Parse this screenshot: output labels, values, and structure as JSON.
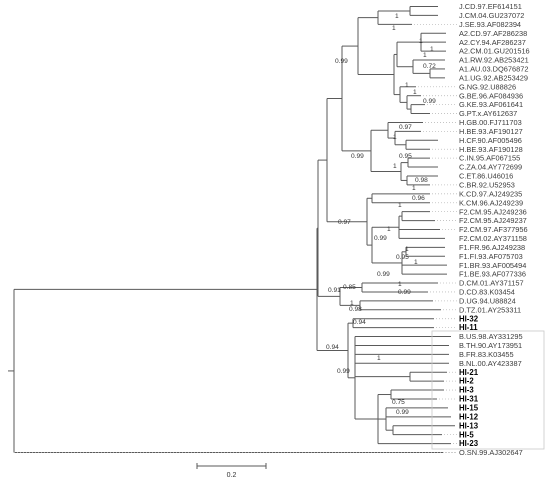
{
  "tree": {
    "taxa": [
      {
        "label": "J.CD.97.EF614151",
        "bold": false
      },
      {
        "label": "J.CM.04.GU237072",
        "bold": false
      },
      {
        "label": "J.SE.93.AF082394",
        "bold": false
      },
      {
        "label": "A2.CD.97.AF286238",
        "bold": false
      },
      {
        "label": "A2.CY.94.AF286237",
        "bold": false
      },
      {
        "label": "A2.CM.01.GU201516",
        "bold": false
      },
      {
        "label": "A1.RW.92.AB253421",
        "bold": false
      },
      {
        "label": "A1.AU.03.DQ676872",
        "bold": false
      },
      {
        "label": "A1.UG.92.AB253429",
        "bold": false
      },
      {
        "label": "G.NG.92.U88826",
        "bold": false
      },
      {
        "label": "G.BE.96.AF084936",
        "bold": false
      },
      {
        "label": "G.KE.93.AF061641",
        "bold": false
      },
      {
        "label": "G.PT.x.AY612637",
        "bold": false
      },
      {
        "label": "H.GB.00.FJ711703",
        "bold": false
      },
      {
        "label": "H.BE.93.AF190127",
        "bold": false
      },
      {
        "label": "H.CF.90.AF005496",
        "bold": false
      },
      {
        "label": "H.BE.93.AF190128",
        "bold": false
      },
      {
        "label": "C.IN.95.AF067155",
        "bold": false
      },
      {
        "label": "C.ZA.04.AY772699",
        "bold": false
      },
      {
        "label": "C.ET.86.U46016",
        "bold": false
      },
      {
        "label": "C.BR.92.U52953",
        "bold": false
      },
      {
        "label": "K.CD.97.AJ249235",
        "bold": false
      },
      {
        "label": "K.CM.96.AJ249239",
        "bold": false
      },
      {
        "label": "F2.CM.95.AJ249236",
        "bold": false
      },
      {
        "label": "F2.CM.95.AJ249237",
        "bold": false
      },
      {
        "label": "F2.CM.97.AF377956",
        "bold": false
      },
      {
        "label": "F2.CM.02.AY371158",
        "bold": false
      },
      {
        "label": "F1.FR.96.AJ249238",
        "bold": false
      },
      {
        "label": "F1.FI.93.AF075703",
        "bold": false
      },
      {
        "label": "F1.BR.93.AF005494",
        "bold": false
      },
      {
        "label": "F1.BE.93.AF077336",
        "bold": false
      },
      {
        "label": "D.CM.01.AY371157",
        "bold": false
      },
      {
        "label": "D.CD.83.K03454",
        "bold": false
      },
      {
        "label": "D.UG.94.U88824",
        "bold": false
      },
      {
        "label": "D.TZ.01.AY253311",
        "bold": false
      },
      {
        "label": "HI-32",
        "bold": true
      },
      {
        "label": "HI-11",
        "bold": true
      },
      {
        "label": "B.US.98.AY331295",
        "bold": false
      },
      {
        "label": "B.TH.90.AY173951",
        "bold": false
      },
      {
        "label": "B.FR.83.K03455",
        "bold": false
      },
      {
        "label": "B.NL.00.AY423387",
        "bold": false
      },
      {
        "label": "HI-21",
        "bold": true
      },
      {
        "label": "HI-2",
        "bold": true
      },
      {
        "label": "HI-3",
        "bold": true
      },
      {
        "label": "HI-31",
        "bold": true
      },
      {
        "label": "HI-15",
        "bold": true
      },
      {
        "label": "HI-12",
        "bold": true
      },
      {
        "label": "HI-13",
        "bold": true
      },
      {
        "label": "HI-5",
        "bold": true
      },
      {
        "label": "HI-23",
        "bold": true
      },
      {
        "label": "O.SN.99.AJ302647",
        "bold": false
      }
    ],
    "support_values": [
      "1",
      "1",
      "1",
      "1",
      "1",
      "0.72",
      "0.99",
      "1",
      "1",
      "0.99",
      "0.97",
      "1",
      "0.99",
      "0.95",
      "1",
      "0.98",
      "1",
      "0.96",
      "1",
      "1",
      "0.97",
      "0.99",
      "1",
      "0.95",
      "1",
      "0.99",
      "1",
      "0.99",
      "0.91",
      "0.85",
      "1",
      "0.98",
      "0.94",
      "0.94",
      "1",
      "0.99",
      "0.75",
      "0.99"
    ],
    "scale_bar_label": "0.2"
  }
}
